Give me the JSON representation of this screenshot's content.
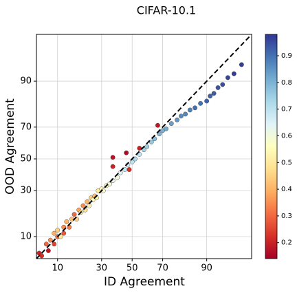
{
  "chart_data": {
    "type": "scatter",
    "title": "CIFAR-10.1",
    "xlabel": "ID Agreement",
    "ylabel": "OOD Agreement",
    "x": [
      5.5,
      6,
      7,
      7.5,
      8,
      9,
      9,
      10,
      10,
      11,
      12,
      12,
      13,
      14,
      15,
      16,
      17,
      18,
      19,
      20,
      21,
      22,
      23,
      24,
      25,
      26,
      27,
      28,
      30,
      31,
      33,
      35,
      37,
      40,
      42,
      45,
      47,
      50,
      52,
      55,
      58,
      60,
      63,
      65,
      68,
      70,
      72,
      75,
      78,
      80,
      82,
      84,
      86,
      88,
      90,
      91,
      92,
      93,
      94,
      95,
      96,
      97,
      37,
      37,
      46,
      48,
      55,
      67
    ],
    "y": [
      6,
      5.5,
      8,
      6.5,
      9,
      8,
      11,
      10,
      12,
      10,
      13,
      11,
      15,
      13,
      16,
      18,
      16,
      20,
      19,
      22,
      20,
      24,
      22,
      26,
      25,
      27,
      26,
      30,
      31,
      30,
      33,
      34,
      36,
      38,
      41,
      43,
      46,
      48,
      50,
      53,
      56,
      58,
      61,
      63,
      66,
      68,
      69,
      72,
      74,
      76,
      77,
      79,
      80,
      82,
      83,
      85,
      86,
      88,
      89,
      91,
      92,
      94,
      51,
      45,
      54,
      43,
      57,
      71
    ],
    "color_values": [
      0.2,
      0.22,
      0.3,
      0.18,
      0.35,
      0.25,
      0.4,
      0.3,
      0.45,
      0.5,
      0.35,
      0.28,
      0.4,
      0.33,
      0.42,
      0.3,
      0.45,
      0.38,
      0.5,
      0.35,
      0.48,
      0.4,
      0.52,
      0.45,
      0.55,
      0.42,
      0.55,
      0.5,
      0.55,
      0.58,
      0.55,
      0.6,
      0.62,
      0.6,
      0.65,
      0.68,
      0.66,
      0.7,
      0.72,
      0.7,
      0.74,
      0.75,
      0.76,
      0.78,
      0.8,
      0.8,
      0.82,
      0.83,
      0.85,
      0.86,
      0.87,
      0.88,
      0.9,
      0.9,
      0.92,
      0.92,
      0.93,
      0.94,
      0.95,
      0.96,
      0.97,
      0.97,
      0.17,
      0.2,
      0.16,
      0.22,
      0.2,
      0.18
    ],
    "xlim": [
      5,
      98
    ],
    "ylim": [
      5,
      98
    ],
    "xticks": [
      10,
      30,
      50,
      70,
      90
    ],
    "yticks": [
      10,
      30,
      50,
      70,
      90
    ],
    "xscale": "probit",
    "yscale": "probit",
    "grid": true,
    "diagonal": true,
    "colorbar": {
      "colormap": "RdYlBu",
      "lim": [
        0.14,
        0.98
      ],
      "ticks": [
        0.2,
        0.3,
        0.4,
        0.5,
        0.6,
        0.7,
        0.8,
        0.9
      ]
    }
  }
}
